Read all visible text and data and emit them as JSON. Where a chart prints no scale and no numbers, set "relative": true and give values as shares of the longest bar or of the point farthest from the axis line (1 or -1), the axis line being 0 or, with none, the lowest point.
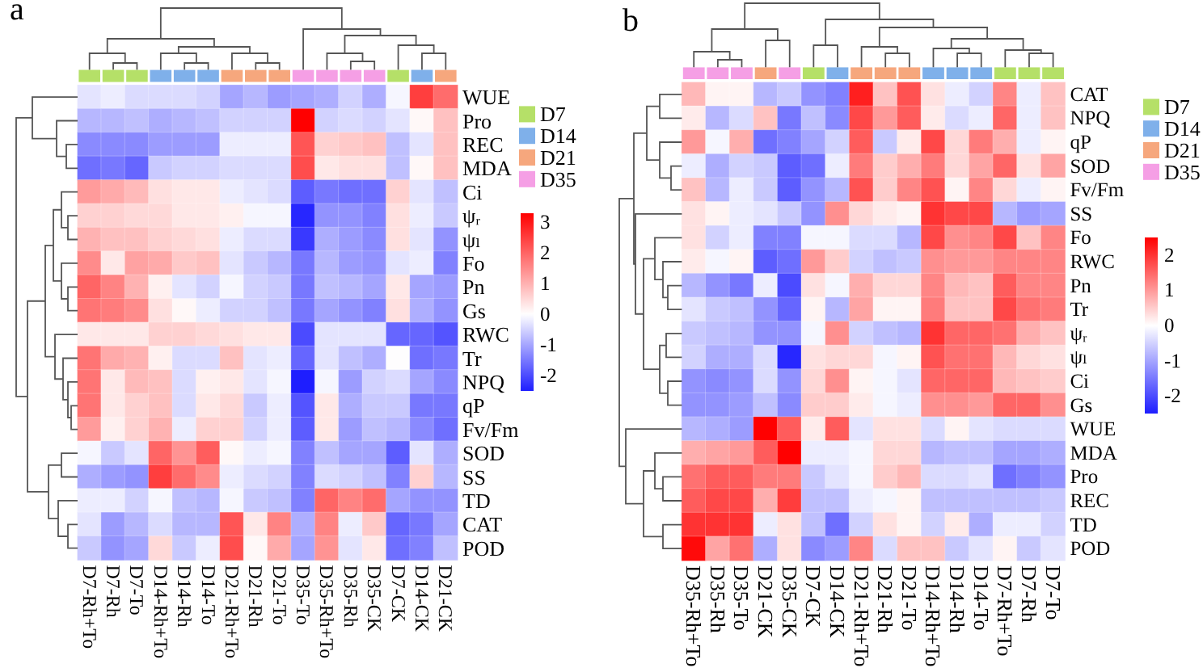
{
  "chart_data": [
    {
      "type": "heatmap",
      "categories": [
        "D7-Rh+To",
        "D7-Rh",
        "D7-To",
        "D14-Rh+To",
        "D14-Rh",
        "D14-To",
        "D21-Rh+To",
        "D21-Rh",
        "D21-To",
        "D35-To",
        "D35-Rh+To",
        "D35-Rh",
        "D35-CK",
        "D7-CK",
        "D14-CK",
        "D21-CK"
      ],
      "y_categories": [
        "WUE",
        "Pro",
        "REC",
        "MDA",
        "Ci",
        "ψᵣ",
        "ψₗ",
        "Fo",
        "Pn",
        "Gs",
        "RWC",
        "Tr",
        "NPQ",
        "qP",
        "Fv/Fm",
        "SOD",
        "SS",
        "TD",
        "CAT",
        "POD"
      ],
      "cells": [
        [
          -0.3,
          -0.2,
          -0.4,
          -0.4,
          -0.4,
          -0.5,
          -1.0,
          -0.8,
          -1.1,
          -1.0,
          -0.9,
          -0.5,
          -0.9,
          -0.1,
          2.5,
          1.9
        ],
        [
          -0.8,
          -0.8,
          -0.7,
          -0.9,
          -0.8,
          -0.7,
          -0.5,
          -0.5,
          -0.5,
          3.3,
          -0.5,
          -0.4,
          -0.5,
          -0.3,
          0.1,
          0.8
        ],
        [
          -1.3,
          -1.3,
          -1.3,
          -1.1,
          -1.1,
          -1.1,
          -0.2,
          -0.2,
          -0.2,
          2.2,
          0.6,
          0.7,
          0.8,
          -0.7,
          -0.3,
          0.8
        ],
        [
          -1.6,
          -1.5,
          -1.7,
          -0.6,
          -0.5,
          -0.5,
          -0.4,
          -0.4,
          -0.4,
          2.3,
          0.3,
          0.4,
          0.4,
          -0.7,
          0.1,
          0.8
        ],
        [
          1.3,
          1.1,
          0.9,
          0.4,
          0.3,
          0.3,
          -0.2,
          -0.3,
          -0.4,
          -1.8,
          -1.5,
          -1.6,
          -1.6,
          0.6,
          -0.3,
          -0.7
        ],
        [
          0.6,
          0.6,
          0.5,
          0.5,
          0.3,
          0.3,
          0.2,
          -0.1,
          -0.1,
          -2.4,
          -1.2,
          -1.2,
          -1.4,
          0.4,
          -0.2,
          -0.6
        ],
        [
          1.0,
          0.8,
          0.8,
          0.6,
          0.5,
          0.4,
          -0.2,
          -0.4,
          -0.4,
          -2.2,
          -0.9,
          -1.1,
          -1.3,
          0.4,
          -0.3,
          -1.2
        ],
        [
          1.5,
          0.3,
          1.2,
          1.1,
          0.7,
          0.8,
          -0.3,
          -0.6,
          -0.8,
          -1.5,
          -0.8,
          -1.1,
          -1.2,
          -0.3,
          -0.2,
          -1.4
        ],
        [
          2.0,
          1.6,
          1.0,
          0.2,
          -0.3,
          -0.5,
          -0.1,
          -0.5,
          -0.6,
          -1.5,
          -0.7,
          -0.8,
          -1.0,
          0.3,
          -1.0,
          -1.1
        ],
        [
          1.8,
          1.7,
          1.5,
          0.4,
          0.1,
          -0.2,
          -0.5,
          -0.5,
          -0.7,
          -1.5,
          -1.0,
          -1.2,
          -1.4,
          0.4,
          -0.9,
          -1.2
        ],
        [
          0.3,
          0.3,
          0.3,
          0.6,
          0.6,
          0.5,
          0.4,
          0.3,
          0.3,
          -2.0,
          -0.3,
          -0.3,
          -0.3,
          -1.7,
          -1.7,
          -1.9
        ],
        [
          1.8,
          1.1,
          1.0,
          0.2,
          -0.4,
          -0.4,
          0.8,
          -0.3,
          -0.2,
          -1.7,
          -0.3,
          -0.7,
          -0.9,
          0.0,
          -1.6,
          -1.5
        ],
        [
          1.8,
          0.3,
          0.9,
          0.8,
          -0.4,
          0.2,
          0.3,
          -0.3,
          -0.1,
          -2.5,
          -0.1,
          -1.1,
          -0.5,
          -0.4,
          -1.0,
          -1.3
        ],
        [
          1.8,
          0.3,
          0.6,
          0.8,
          -0.4,
          0.3,
          0.5,
          -0.6,
          -0.2,
          -1.9,
          0.3,
          -0.9,
          -0.6,
          -0.6,
          -1.5,
          -1.5
        ],
        [
          1.3,
          0.2,
          0.6,
          1.0,
          -0.2,
          0.6,
          0.6,
          -0.5,
          -0.2,
          -1.8,
          0.3,
          -1.1,
          -0.7,
          -0.8,
          -1.3,
          -1.6
        ],
        [
          -0.1,
          -0.6,
          -0.3,
          2.0,
          1.4,
          2.1,
          0.1,
          -0.2,
          -0.1,
          -1.4,
          -0.7,
          -1.0,
          -1.0,
          -1.8,
          -0.3,
          -0.9
        ],
        [
          -0.9,
          -1.1,
          -1.2,
          2.5,
          1.9,
          1.5,
          -0.2,
          -0.4,
          -0.5,
          -1.4,
          -0.4,
          -0.5,
          -0.7,
          -1.4,
          0.6,
          -0.8
        ],
        [
          -0.2,
          -0.2,
          -0.5,
          -0.1,
          -0.7,
          -0.8,
          -0.1,
          -0.6,
          -0.7,
          -1.4,
          2.0,
          1.6,
          1.9,
          -1.0,
          -1.2,
          -1.2
        ],
        [
          -0.3,
          -1.1,
          -0.8,
          -0.4,
          -0.8,
          -0.8,
          2.2,
          0.3,
          1.6,
          -0.9,
          1.6,
          -0.2,
          0.7,
          -1.7,
          -1.5,
          -1.0
        ],
        [
          -0.6,
          -1.2,
          -1.0,
          0.5,
          -0.6,
          -0.2,
          2.3,
          0.1,
          1.1,
          -1.0,
          1.4,
          -0.3,
          0.3,
          -1.6,
          -1.4,
          -0.7
        ]
      ],
      "clim": [
        -2.5,
        3.3
      ],
      "cticks": [
        -2,
        -1,
        0,
        1,
        2,
        3
      ]
    },
    {
      "type": "bar",
      "title": "a",
      "stacked": true,
      "relative": true,
      "legend": "right",
      "categories": [
        null,
        null,
        null,
        null,
        null,
        null,
        null,
        null,
        null,
        null,
        null,
        null,
        null,
        null,
        null,
        null
      ],
      "series": [
        {
          "name": "D7",
          "color": "#b5e068",
          "values": [
            1,
            1,
            1,
            null,
            null,
            null,
            null,
            null,
            null,
            null,
            null,
            null,
            null,
            1,
            null,
            null
          ]
        },
        {
          "name": "D14",
          "color": "#7fb0ea",
          "values": [
            null,
            null,
            null,
            1,
            1,
            1,
            null,
            null,
            null,
            null,
            null,
            null,
            null,
            null,
            1,
            null
          ]
        },
        {
          "name": "D21",
          "color": "#f6a77d",
          "values": [
            null,
            null,
            null,
            null,
            null,
            null,
            1,
            1,
            1,
            null,
            null,
            null,
            null,
            null,
            null,
            1
          ]
        },
        {
          "name": "D35",
          "color": "#f59fe5",
          "values": [
            null,
            null,
            null,
            null,
            null,
            null,
            null,
            null,
            null,
            1,
            1,
            1,
            1,
            null,
            null,
            null
          ]
        }
      ]
    },
    {
      "type": "heatmap",
      "categories": [
        "D35-Rh+To",
        "D35-Rh",
        "D35-To",
        "D21-CK",
        "D35-CK",
        "D7-CK",
        "D14-CK",
        "D21-Rh+To",
        "D21-Rh",
        "D21-To",
        "D14-Rh+To",
        "D14-Rh",
        "D14-To",
        "D7-Rh+To",
        "D7-Rh",
        "D7-To"
      ],
      "y_categories": [
        "CAT",
        "NPQ",
        "qP",
        "SOD",
        "Fv/Fm",
        "SS",
        "Fo",
        "RWC",
        "Pn",
        "Tr",
        "ψᵣ",
        "ψₗ",
        "Ci",
        "Gs",
        "WUE",
        "MDA",
        "Pro",
        "REC",
        "TD",
        "POD"
      ],
      "cells": [
        [
          0.7,
          0.1,
          0.1,
          -0.8,
          -0.6,
          -1.2,
          -1.4,
          2.2,
          0.6,
          1.7,
          0.3,
          -0.2,
          -0.5,
          1.2,
          -0.2,
          0.6
        ],
        [
          0.2,
          -0.8,
          -0.4,
          0.6,
          -1.5,
          -0.7,
          -1.3,
          1.8,
          1.0,
          1.6,
          0.2,
          -0.4,
          -0.2,
          1.5,
          -0.2,
          0.6
        ],
        [
          1.0,
          -0.1,
          0.8,
          -1.6,
          -1.4,
          -1.0,
          -0.5,
          1.6,
          -0.6,
          0.2,
          1.8,
          0.4,
          1.3,
          0.8,
          -0.2,
          0.1
        ],
        [
          -0.2,
          -0.9,
          -0.5,
          -0.6,
          -1.8,
          -1.6,
          -0.2,
          1.3,
          0.5,
          0.8,
          1.3,
          0.4,
          0.9,
          1.5,
          0.3,
          0.9
        ],
        [
          0.6,
          -0.8,
          -0.2,
          -0.6,
          -1.8,
          -1.2,
          -0.8,
          1.7,
          0.5,
          1.2,
          1.7,
          0.1,
          1.2,
          0.4,
          -0.2,
          0.1
        ],
        [
          0.3,
          0.1,
          -0.2,
          -0.3,
          -0.6,
          -1.2,
          1.1,
          0.4,
          0.2,
          0.1,
          2.0,
          1.8,
          1.8,
          -0.8,
          -1.1,
          -1.0
        ],
        [
          0.3,
          -0.5,
          -0.2,
          -1.4,
          -1.4,
          -0.1,
          -0.1,
          -0.4,
          -0.4,
          -0.8,
          1.8,
          1.1,
          1.2,
          1.8,
          0.6,
          1.2
        ],
        [
          0.2,
          -0.1,
          0.1,
          -1.8,
          -1.6,
          1.0,
          0.5,
          -0.5,
          -0.7,
          -0.6,
          1.1,
          1.0,
          1.0,
          1.2,
          1.2,
          1.2
        ],
        [
          -0.8,
          -1.2,
          -1.5,
          -0.2,
          -2.0,
          0.3,
          -0.1,
          0.8,
          0.4,
          0.4,
          1.2,
          0.7,
          0.6,
          1.6,
          1.2,
          1.2
        ],
        [
          -0.3,
          -0.6,
          -0.7,
          -1.2,
          -1.7,
          0.1,
          -0.8,
          0.9,
          0.1,
          0.1,
          1.3,
          0.6,
          0.6,
          1.8,
          1.4,
          1.3
        ],
        [
          -0.6,
          -0.7,
          -0.8,
          -1.2,
          -1.2,
          -0.1,
          1.1,
          -0.5,
          -0.7,
          -0.8,
          2.0,
          1.5,
          1.5,
          1.4,
          0.8,
          0.6
        ],
        [
          -0.5,
          -0.9,
          -0.9,
          -0.4,
          -2.4,
          0.3,
          0.4,
          0.4,
          -0.1,
          0.1,
          1.7,
          1.4,
          1.4,
          0.7,
          0.4,
          0.3
        ],
        [
          -1.2,
          -1.3,
          -1.2,
          -0.4,
          -1.2,
          0.4,
          1.1,
          0.1,
          -0.1,
          -0.3,
          1.5,
          1.5,
          1.5,
          0.7,
          0.6,
          0.5
        ],
        [
          -1.2,
          -1.2,
          -1.1,
          -0.7,
          -1.3,
          0.5,
          0.5,
          0.2,
          -0.1,
          -0.2,
          1.1,
          1.1,
          1.0,
          1.5,
          1.5,
          1.1
        ],
        [
          -0.8,
          -0.9,
          -1.1,
          2.5,
          1.6,
          0.2,
          1.6,
          -0.3,
          0.3,
          0.3,
          -0.4,
          0.1,
          -0.3,
          -0.4,
          -0.4,
          -0.4
        ],
        [
          0.8,
          0.9,
          1.0,
          1.6,
          2.5,
          -0.2,
          -0.2,
          -0.1,
          0.4,
          0.4,
          -0.8,
          -0.7,
          -0.7,
          -1.0,
          -1.0,
          -0.9
        ],
        [
          1.4,
          1.6,
          1.6,
          1.3,
          1.3,
          -0.6,
          -0.3,
          -0.1,
          0.5,
          0.7,
          -0.4,
          -0.4,
          -0.3,
          -1.6,
          -1.4,
          -1.2
        ],
        [
          1.6,
          1.8,
          1.8,
          0.8,
          1.9,
          -0.7,
          -0.7,
          -0.2,
          -0.1,
          0.1,
          -0.7,
          -0.7,
          -0.7,
          -0.7,
          -0.7,
          -0.6
        ],
        [
          2.0,
          2.0,
          2.0,
          -0.2,
          0.3,
          -0.7,
          -1.6,
          -0.5,
          0.3,
          0.1,
          -0.5,
          0.2,
          -0.9,
          -0.2,
          -0.2,
          -0.5
        ],
        [
          2.4,
          0.9,
          1.4,
          -0.9,
          0.3,
          -1.3,
          -1.1,
          1.2,
          -0.4,
          0.6,
          0.6,
          -0.6,
          -0.3,
          0.1,
          -0.6,
          -0.3
        ]
      ],
      "clim": [
        -2.5,
        2.5
      ],
      "cticks": [
        -2,
        -1,
        0,
        1,
        2
      ]
    },
    {
      "type": "bar",
      "title": "b",
      "stacked": true,
      "relative": true,
      "legend": "right",
      "categories": [
        null,
        null,
        null,
        null,
        null,
        null,
        null,
        null,
        null,
        null,
        null,
        null,
        null,
        null,
        null,
        null
      ],
      "series": [
        {
          "name": "D7",
          "color": "#b5e068",
          "values": [
            null,
            null,
            null,
            null,
            null,
            1,
            null,
            null,
            null,
            null,
            null,
            null,
            null,
            1,
            1,
            1
          ]
        },
        {
          "name": "D14",
          "color": "#7fb0ea",
          "values": [
            null,
            null,
            null,
            null,
            null,
            null,
            1,
            null,
            null,
            null,
            1,
            1,
            1,
            null,
            null,
            null
          ]
        },
        {
          "name": "D21",
          "color": "#f6a77d",
          "values": [
            null,
            null,
            null,
            1,
            null,
            null,
            null,
            1,
            1,
            1,
            null,
            null,
            null,
            null,
            null,
            null
          ]
        },
        {
          "name": "D35",
          "color": "#f59fe5",
          "values": [
            1,
            1,
            1,
            null,
            1,
            null,
            null,
            null,
            null,
            null,
            null,
            null,
            null,
            null,
            null,
            null
          ]
        }
      ]
    }
  ]
}
